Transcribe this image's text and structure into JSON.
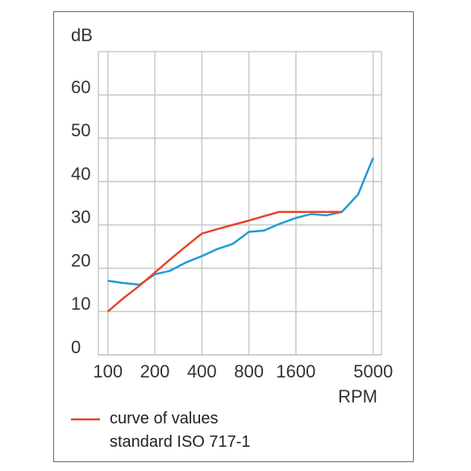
{
  "chart_data": {
    "type": "line",
    "y_label": "dB",
    "x_label": "RPM",
    "x": [
      100,
      125,
      160,
      200,
      250,
      315,
      400,
      500,
      630,
      800,
      1000,
      1250,
      1600,
      2000,
      2500,
      3150,
      4000,
      5000
    ],
    "series": [
      {
        "color": "#1e9bd7",
        "values": [
          17.1,
          16.6,
          16.2,
          18.6,
          19.4,
          21.3,
          22.8,
          24.4,
          25.6,
          28.4,
          28.7,
          30.2,
          31.6,
          32.5,
          32.2,
          33,
          37,
          45.5
        ]
      },
      {
        "name": "curve of values standard ISO 717-1",
        "color": "#e8432a",
        "values": [
          10,
          13,
          16,
          19,
          22,
          25,
          28,
          29,
          30,
          31,
          32,
          33,
          33,
          33,
          33,
          33,
          null,
          null
        ]
      }
    ],
    "x_log": true,
    "xlim": [
      87,
      5650
    ],
    "xticks": [
      100,
      200,
      400,
      800,
      1600,
      5000
    ],
    "ylim": [
      0,
      70
    ],
    "yticks": [
      0,
      10,
      20,
      30,
      40,
      50,
      60
    ],
    "grid": true
  }
}
